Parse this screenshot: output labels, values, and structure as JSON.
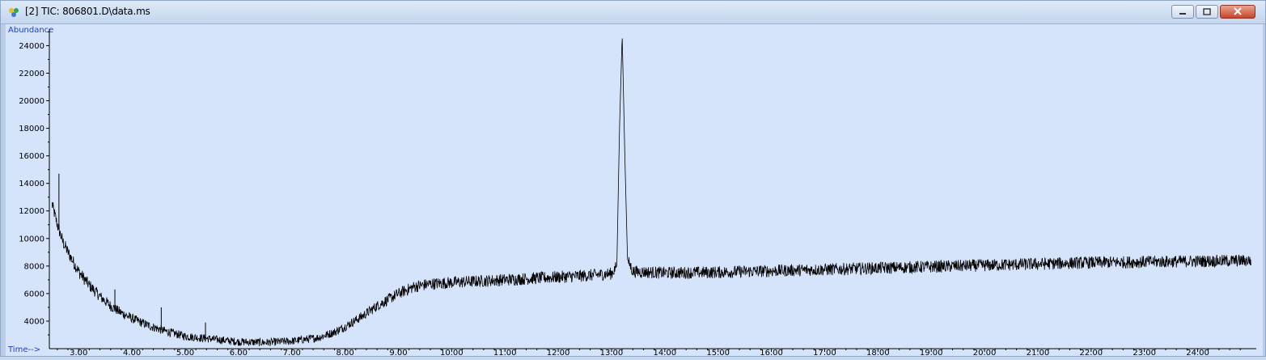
{
  "window": {
    "title": "[2] TIC: 806801.D\\data.ms",
    "buttons": [
      "minimize",
      "maximize",
      "close"
    ]
  },
  "colors": {
    "plot_bg": "#d5e3fb",
    "trace": "#000000",
    "axis_label": "#1f3fd0"
  },
  "chart_data": {
    "type": "line",
    "title": "",
    "xlabel": "Time-->",
    "ylabel": "Abundance",
    "xlim": [
      2.45,
      25.1
    ],
    "ylim": [
      2000,
      25200
    ],
    "x_ticks": [
      3,
      4,
      5,
      6,
      7,
      8,
      9,
      10,
      11,
      12,
      13,
      14,
      15,
      16,
      17,
      18,
      19,
      20,
      21,
      22,
      23,
      24
    ],
    "x_tick_labels": [
      "3.00",
      "4.00",
      "5.00",
      "6.00",
      "7.00",
      "8.00",
      "9.00",
      "10.00",
      "11.00",
      "12.00",
      "13.00",
      "14.00",
      "15.00",
      "16.00",
      "17.00",
      "18.00",
      "19.00",
      "20.00",
      "21.00",
      "22.00",
      "23.00",
      "24.00"
    ],
    "y_ticks": [
      4000,
      6000,
      8000,
      10000,
      12000,
      14000,
      16000,
      18000,
      20000,
      22000,
      24000
    ],
    "y_tick_labels": [
      "4000",
      "6000",
      "8000",
      "10000",
      "12000",
      "14000",
      "16000",
      "18000",
      "20000",
      "22000",
      "24000"
    ],
    "grid": false,
    "series": [
      {
        "x": [
          2.5,
          2.6,
          2.7,
          2.8,
          2.9,
          3.0,
          3.2,
          3.4,
          3.6,
          3.8,
          4.0,
          4.3,
          4.6,
          5.0,
          5.5,
          6.0,
          6.5,
          7.0,
          7.5,
          7.8,
          8.0,
          8.3,
          8.6,
          9.0,
          9.3,
          9.6,
          10.0,
          10.5,
          11.0,
          11.5,
          12.0,
          12.5,
          13.0,
          13.1,
          13.15,
          13.2,
          13.25,
          13.3,
          13.4,
          14.0,
          15.0,
          16.0,
          17.0,
          18.0,
          19.0,
          20.0,
          21.0,
          22.0,
          23.0,
          24.0,
          25.0
        ],
        "y": [
          12500,
          11000,
          9800,
          9000,
          8300,
          7600,
          6600,
          5800,
          5100,
          4600,
          4200,
          3700,
          3300,
          2900,
          2700,
          2500,
          2450,
          2550,
          2800,
          3200,
          3600,
          4300,
          5100,
          6000,
          6500,
          6700,
          6800,
          6900,
          7000,
          7100,
          7200,
          7300,
          7450,
          8000,
          18000,
          24800,
          16000,
          8500,
          7600,
          7500,
          7550,
          7650,
          7750,
          7850,
          7950,
          8050,
          8150,
          8250,
          8300,
          8350,
          8400
        ],
        "noise_amplitude": 450
      }
    ],
    "spikes": [
      {
        "x": 2.63,
        "y": 14700
      },
      {
        "x": 3.68,
        "y": 6300
      },
      {
        "x": 4.55,
        "y": 5000
      },
      {
        "x": 5.38,
        "y": 3900
      },
      {
        "x": 13.2,
        "y": 24800
      }
    ]
  }
}
